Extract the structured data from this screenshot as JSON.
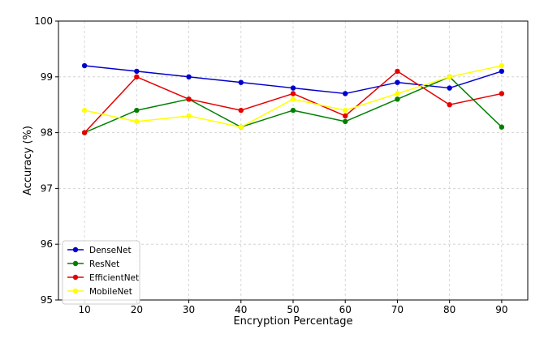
{
  "chart_data": {
    "type": "line",
    "title": "",
    "xlabel": "Encryption Percentage",
    "ylabel": "Accuracy (%)",
    "x": [
      10,
      20,
      30,
      40,
      50,
      60,
      70,
      80,
      90
    ],
    "xlim": [
      5,
      95
    ],
    "ylim": [
      95,
      100
    ],
    "xticks": [
      "10",
      "20",
      "30",
      "40",
      "50",
      "60",
      "70",
      "80",
      "90"
    ],
    "yticks": [
      "95",
      "96",
      "97",
      "98",
      "99",
      "100"
    ],
    "grid": true,
    "legend_position": "bottom-left",
    "series": [
      {
        "name": "DenseNet",
        "color": "#0000cc",
        "values": [
          99.2,
          99.1,
          99.0,
          98.9,
          98.8,
          98.7,
          98.9,
          98.8,
          99.1
        ]
      },
      {
        "name": "ResNet",
        "color": "#008000",
        "values": [
          98.0,
          98.4,
          98.6,
          98.1,
          98.4,
          98.2,
          98.6,
          99.0,
          98.1
        ]
      },
      {
        "name": "EfficientNet",
        "color": "#e60000",
        "values": [
          98.0,
          99.0,
          98.6,
          98.4,
          98.7,
          98.3,
          99.1,
          98.5,
          98.7
        ]
      },
      {
        "name": "MobileNet",
        "color": "#ffff00",
        "values": [
          98.4,
          98.2,
          98.3,
          98.1,
          98.6,
          98.4,
          98.7,
          99.0,
          99.2
        ]
      }
    ]
  }
}
